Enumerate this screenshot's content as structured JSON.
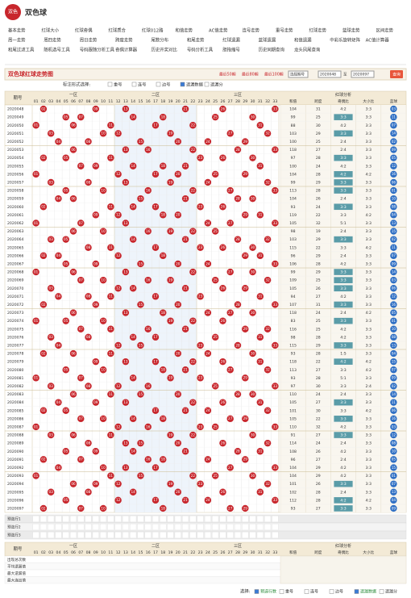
{
  "header": {
    "logo": "双色",
    "title": "双色球"
  },
  "nav": [
    [
      "基本走势",
      "红球大小",
      "红球奇偶",
      "红球质合",
      "红球012路",
      "和值走势",
      "AC值走势",
      "连号走势",
      "重号走势",
      "红球走势",
      "蓝球走势",
      "区间走势"
    ],
    [
      "周一走势",
      "周四走势",
      "周日走势",
      "跨度走势",
      "尾数分布",
      "和尾走势",
      "红球遗漏",
      "蓝球遗漏",
      "和值遗漏",
      "中彩乐旋转矩阵",
      "AC值计算器"
    ],
    [
      "和尾过滤工具",
      "随机选号工具",
      "号码跟随分析工具",
      "奇偶计算器",
      "历史开奖对比",
      "号码分析工具",
      "胆拖缩号",
      "历史同期查询",
      "龙头凤尾查询"
    ]
  ],
  "chart_title": "双色球红球走势图",
  "quick": [
    "最近50期",
    "最近80期",
    "最近100期"
  ],
  "range": {
    "select": "选择期号",
    "from": 2020048,
    "to_label": "至",
    "to": 2020097,
    "button": "查询"
  },
  "options": {
    "label": "标注形式选择:",
    "items": [
      "重号",
      "连号",
      "边号",
      "遗漏数据",
      "遗漏分"
    ],
    "checked": [
      false,
      false,
      false,
      true,
      false
    ]
  },
  "table": {
    "period_header": "期号",
    "zones": [
      "一区",
      "二区",
      "三区"
    ],
    "analysis_header": "红球分析",
    "red_columns": [
      "01",
      "02",
      "03",
      "04",
      "05",
      "06",
      "07",
      "08",
      "09",
      "10",
      "11",
      "12",
      "13",
      "14",
      "15",
      "16",
      "17",
      "18",
      "19",
      "20",
      "21",
      "22",
      "23",
      "24",
      "25",
      "26",
      "27",
      "28",
      "29",
      "30",
      "31",
      "32",
      "33"
    ],
    "analysis_columns": [
      "和值",
      "跨度",
      "奇偶比",
      "大小比",
      "蓝球"
    ],
    "rows": [
      {
        "period": 2020048,
        "red": [
          "02",
          "09",
          "13",
          "21",
          "26",
          "33"
        ],
        "blue": "03",
        "sum": 104,
        "span": 31,
        "odd_even": "4:2",
        "big_small": "3:3"
      },
      {
        "period": 2020049,
        "red": [
          "05",
          "07",
          "14",
          "18",
          "25",
          "30"
        ],
        "blue": "11",
        "sum": 99,
        "span": 25,
        "odd_even": "3:3",
        "big_small": "3:3"
      },
      {
        "period": 2020050,
        "red": [
          "01",
          "06",
          "11",
          "17",
          "22",
          "31"
        ],
        "blue": "07",
        "sum": 88,
        "span": 30,
        "odd_even": "4:2",
        "big_small": "3:3"
      },
      {
        "period": 2020051,
        "red": [
          "03",
          "10",
          "12",
          "19",
          "27",
          "32"
        ],
        "blue": "14",
        "sum": 103,
        "span": 29,
        "odd_even": "3:3",
        "big_small": "3:3"
      },
      {
        "period": 2020052,
        "red": [
          "04",
          "08",
          "15",
          "20",
          "24",
          "29"
        ],
        "blue": "02",
        "sum": 100,
        "span": 25,
        "odd_even": "2:4",
        "big_small": "3:3"
      },
      {
        "period": 2020053,
        "red": [
          "06",
          "13",
          "16",
          "22",
          "28",
          "33"
        ],
        "blue": "09",
        "sum": 118,
        "span": 27,
        "odd_even": "2:4",
        "big_small": "3:3"
      },
      {
        "period": 2020054,
        "red": [
          "02",
          "05",
          "11",
          "23",
          "26",
          "30"
        ],
        "blue": "05",
        "sum": 97,
        "span": 28,
        "odd_even": "3:3",
        "big_small": "3:3"
      },
      {
        "period": 2020055,
        "red": [
          "07",
          "09",
          "14",
          "18",
          "21",
          "31"
        ],
        "blue": "12",
        "sum": 100,
        "span": 24,
        "odd_even": "4:2",
        "big_small": "3:3"
      },
      {
        "period": 2020056,
        "red": [
          "01",
          "12",
          "17",
          "20",
          "25",
          "29"
        ],
        "blue": "16",
        "sum": 104,
        "span": 28,
        "odd_even": "4:2",
        "big_small": "4:2"
      },
      {
        "period": 2020057,
        "red": [
          "03",
          "08",
          "13",
          "19",
          "24",
          "32"
        ],
        "blue": "06",
        "sum": 99,
        "span": 29,
        "odd_even": "3:3",
        "big_small": "3:3"
      },
      {
        "period": 2020058,
        "red": [
          "05",
          "10",
          "16",
          "22",
          "27",
          "33"
        ],
        "blue": "01",
        "sum": 113,
        "span": 28,
        "odd_even": "3:3",
        "big_small": "3:3"
      },
      {
        "period": 2020059,
        "red": [
          "04",
          "06",
          "15",
          "21",
          "28",
          "30"
        ],
        "blue": "10",
        "sum": 104,
        "span": 26,
        "odd_even": "2:4",
        "big_small": "3:3"
      },
      {
        "period": 2020060,
        "red": [
          "02",
          "11",
          "14",
          "17",
          "23",
          "26"
        ],
        "blue": "08",
        "sum": 93,
        "span": 24,
        "odd_even": "3:3",
        "big_small": "3:3"
      },
      {
        "period": 2020061,
        "red": [
          "09",
          "12",
          "18",
          "20",
          "29",
          "31"
        ],
        "blue": "04",
        "sum": 119,
        "span": 22,
        "odd_even": "3:3",
        "big_small": "4:2"
      },
      {
        "period": 2020062,
        "red": [
          "01",
          "07",
          "13",
          "24",
          "27",
          "33"
        ],
        "blue": "13",
        "sum": 105,
        "span": 32,
        "odd_even": "5:1",
        "big_small": "3:3"
      },
      {
        "period": 2020063,
        "red": [
          "06",
          "10",
          "16",
          "19",
          "22",
          "25"
        ],
        "blue": "15",
        "sum": 98,
        "span": 19,
        "odd_even": "2:4",
        "big_small": "3:3"
      },
      {
        "period": 2020064,
        "red": [
          "03",
          "05",
          "14",
          "21",
          "28",
          "32"
        ],
        "blue": "02",
        "sum": 103,
        "span": 29,
        "odd_even": "3:3",
        "big_small": "3:3"
      },
      {
        "period": 2020065,
        "red": [
          "08",
          "11",
          "17",
          "23",
          "26",
          "30"
        ],
        "blue": "11",
        "sum": 115,
        "span": 22,
        "odd_even": "3:3",
        "big_small": "4:2"
      },
      {
        "period": 2020066,
        "red": [
          "02",
          "04",
          "12",
          "18",
          "29",
          "31"
        ],
        "blue": "07",
        "sum": 96,
        "span": 29,
        "odd_even": "2:4",
        "big_small": "3:3"
      },
      {
        "period": 2020067,
        "red": [
          "05",
          "09",
          "15",
          "20",
          "24",
          "33"
        ],
        "blue": "09",
        "sum": 106,
        "span": 28,
        "odd_even": "4:2",
        "big_small": "3:3"
      },
      {
        "period": 2020068,
        "red": [
          "01",
          "06",
          "13",
          "22",
          "27",
          "30"
        ],
        "blue": "14",
        "sum": 99,
        "span": 29,
        "odd_even": "3:3",
        "big_small": "3:3"
      },
      {
        "period": 2020069,
        "red": [
          "07",
          "10",
          "16",
          "19",
          "25",
          "32"
        ],
        "blue": "03",
        "sum": 109,
        "span": 25,
        "odd_even": "3:3",
        "big_small": "3:3"
      },
      {
        "period": 2020070,
        "red": [
          "03",
          "12",
          "14",
          "21",
          "26",
          "29"
        ],
        "blue": "06",
        "sum": 105,
        "span": 26,
        "odd_even": "3:3",
        "big_small": "3:3"
      },
      {
        "period": 2020071,
        "red": [
          "04",
          "08",
          "11",
          "17",
          "23",
          "31"
        ],
        "blue": "12",
        "sum": 94,
        "span": 27,
        "odd_even": "4:2",
        "big_small": "3:3"
      },
      {
        "period": 2020072,
        "red": [
          "02",
          "09",
          "15",
          "20",
          "28",
          "33"
        ],
        "blue": "16",
        "sum": 107,
        "span": 31,
        "odd_even": "3:3",
        "big_small": "3:3"
      },
      {
        "period": 2020073,
        "red": [
          "06",
          "13",
          "18",
          "24",
          "27",
          "30"
        ],
        "blue": "05",
        "sum": 118,
        "span": 24,
        "odd_even": "2:4",
        "big_small": "4:2"
      },
      {
        "period": 2020074,
        "red": [
          "01",
          "05",
          "10",
          "19",
          "22",
          "26"
        ],
        "blue": "01",
        "sum": 83,
        "span": 25,
        "odd_even": "3:3",
        "big_small": "3:3"
      },
      {
        "period": 2020075,
        "red": [
          "07",
          "11",
          "16",
          "21",
          "29",
          "32"
        ],
        "blue": "10",
        "sum": 116,
        "span": 25,
        "odd_even": "4:2",
        "big_small": "3:3"
      },
      {
        "period": 2020076,
        "red": [
          "03",
          "08",
          "14",
          "17",
          "25",
          "31"
        ],
        "blue": "08",
        "sum": 98,
        "span": 28,
        "odd_even": "4:2",
        "big_small": "3:3"
      },
      {
        "period": 2020077,
        "red": [
          "04",
          "12",
          "15",
          "23",
          "28",
          "33"
        ],
        "blue": "13",
        "sum": 115,
        "span": 29,
        "odd_even": "3:3",
        "big_small": "3:3"
      },
      {
        "period": 2020078,
        "red": [
          "02",
          "06",
          "11",
          "20",
          "24",
          "30"
        ],
        "blue": "04",
        "sum": 93,
        "span": 28,
        "odd_even": "1:5",
        "big_small": "3:3"
      },
      {
        "period": 2020079,
        "red": [
          "09",
          "13",
          "17",
          "22",
          "26",
          "31"
        ],
        "blue": "15",
        "sum": 118,
        "span": 22,
        "odd_even": "4:2",
        "big_small": "4:2"
      },
      {
        "period": 2020080,
        "red": [
          "05",
          "10",
          "18",
          "21",
          "27",
          "32"
        ],
        "blue": "07",
        "sum": 113,
        "span": 27,
        "odd_even": "3:3",
        "big_small": "4:2"
      },
      {
        "period": 2020081,
        "red": [
          "01",
          "07",
          "14",
          "19",
          "23",
          "29"
        ],
        "blue": "09",
        "sum": 93,
        "span": 28,
        "odd_even": "5:1",
        "big_small": "3:3"
      },
      {
        "period": 2020082,
        "red": [
          "03",
          "08",
          "12",
          "16",
          "25",
          "33"
        ],
        "blue": "02",
        "sum": 97,
        "span": 30,
        "odd_even": "3:3",
        "big_small": "2:4"
      },
      {
        "period": 2020083,
        "red": [
          "06",
          "11",
          "15",
          "20",
          "28",
          "30"
        ],
        "blue": "14",
        "sum": 110,
        "span": 24,
        "odd_even": "2:4",
        "big_small": "3:3"
      },
      {
        "period": 2020084,
        "red": [
          "04",
          "09",
          "13",
          "22",
          "26",
          "31"
        ],
        "blue": "11",
        "sum": 105,
        "span": 27,
        "odd_even": "3:3",
        "big_small": "3:3"
      },
      {
        "period": 2020085,
        "red": [
          "02",
          "05",
          "17",
          "21",
          "24",
          "32"
        ],
        "blue": "06",
        "sum": 101,
        "span": 30,
        "odd_even": "3:3",
        "big_small": "4:2"
      },
      {
        "period": 2020086,
        "red": [
          "07",
          "10",
          "14",
          "18",
          "27",
          "29"
        ],
        "blue": "16",
        "sum": 105,
        "span": 22,
        "odd_even": "3:3",
        "big_small": "3:3"
      },
      {
        "period": 2020087,
        "red": [
          "01",
          "12",
          "16",
          "23",
          "25",
          "33"
        ],
        "blue": "03",
        "sum": 110,
        "span": 32,
        "odd_even": "4:2",
        "big_small": "3:3"
      },
      {
        "period": 2020088,
        "red": [
          "03",
          "06",
          "11",
          "19",
          "22",
          "30"
        ],
        "blue": "12",
        "sum": 91,
        "span": 27,
        "odd_even": "3:3",
        "big_small": "3:3"
      },
      {
        "period": 2020089,
        "red": [
          "08",
          "13",
          "15",
          "20",
          "26",
          "32"
        ],
        "blue": "08",
        "sum": 114,
        "span": 24,
        "odd_even": "2:4",
        "big_small": "3:3"
      },
      {
        "period": 2020090,
        "red": [
          "05",
          "09",
          "14",
          "21",
          "28",
          "31"
        ],
        "blue": "10",
        "sum": 108,
        "span": 26,
        "odd_even": "4:2",
        "big_small": "3:3"
      },
      {
        "period": 2020091,
        "red": [
          "02",
          "07",
          "16",
          "18",
          "24",
          "29"
        ],
        "blue": "05",
        "sum": 96,
        "span": 27,
        "odd_even": "2:4",
        "big_small": "3:3"
      },
      {
        "period": 2020092,
        "red": [
          "04",
          "10",
          "13",
          "17",
          "27",
          "33"
        ],
        "blue": "15",
        "sum": 104,
        "span": 29,
        "odd_even": "4:2",
        "big_small": "3:3"
      },
      {
        "period": 2020093,
        "red": [
          "01",
          "11",
          "15",
          "22",
          "25",
          "30"
        ],
        "blue": "01",
        "sum": 104,
        "span": 29,
        "odd_even": "4:2",
        "big_small": "3:3"
      },
      {
        "period": 2020094,
        "red": [
          "06",
          "09",
          "12",
          "19",
          "23",
          "32"
        ],
        "blue": "07",
        "sum": 101,
        "span": 26,
        "odd_even": "3:3",
        "big_small": "3:3"
      },
      {
        "period": 2020095,
        "red": [
          "03",
          "08",
          "14",
          "20",
          "26",
          "31"
        ],
        "blue": "13",
        "sum": 102,
        "span": 28,
        "odd_even": "2:4",
        "big_small": "3:3"
      },
      {
        "period": 2020096,
        "red": [
          "05",
          "12",
          "17",
          "21",
          "24",
          "33"
        ],
        "blue": "04",
        "sum": 112,
        "span": 28,
        "odd_even": "4:2",
        "big_small": "4:2"
      },
      {
        "period": 2020097,
        "red": [
          "02",
          "07",
          "10",
          "18",
          "27",
          "29"
        ],
        "blue": "09",
        "sum": 93,
        "span": 27,
        "odd_even": "3:3",
        "big_small": "3:3"
      }
    ],
    "preselect": [
      "预选行1",
      "预选行2",
      "预选行3"
    ],
    "stats_labels": [
      "出现总次数",
      "平均遗漏值",
      "最大遗漏值",
      "最大连出值"
    ]
  },
  "bottom": {
    "label": "选择:",
    "items": [
      "预选行数",
      "重号",
      "连号",
      "边号",
      "遗漏数据",
      "遗漏分"
    ],
    "checked": [
      true,
      false,
      false,
      false,
      true,
      false
    ]
  }
}
